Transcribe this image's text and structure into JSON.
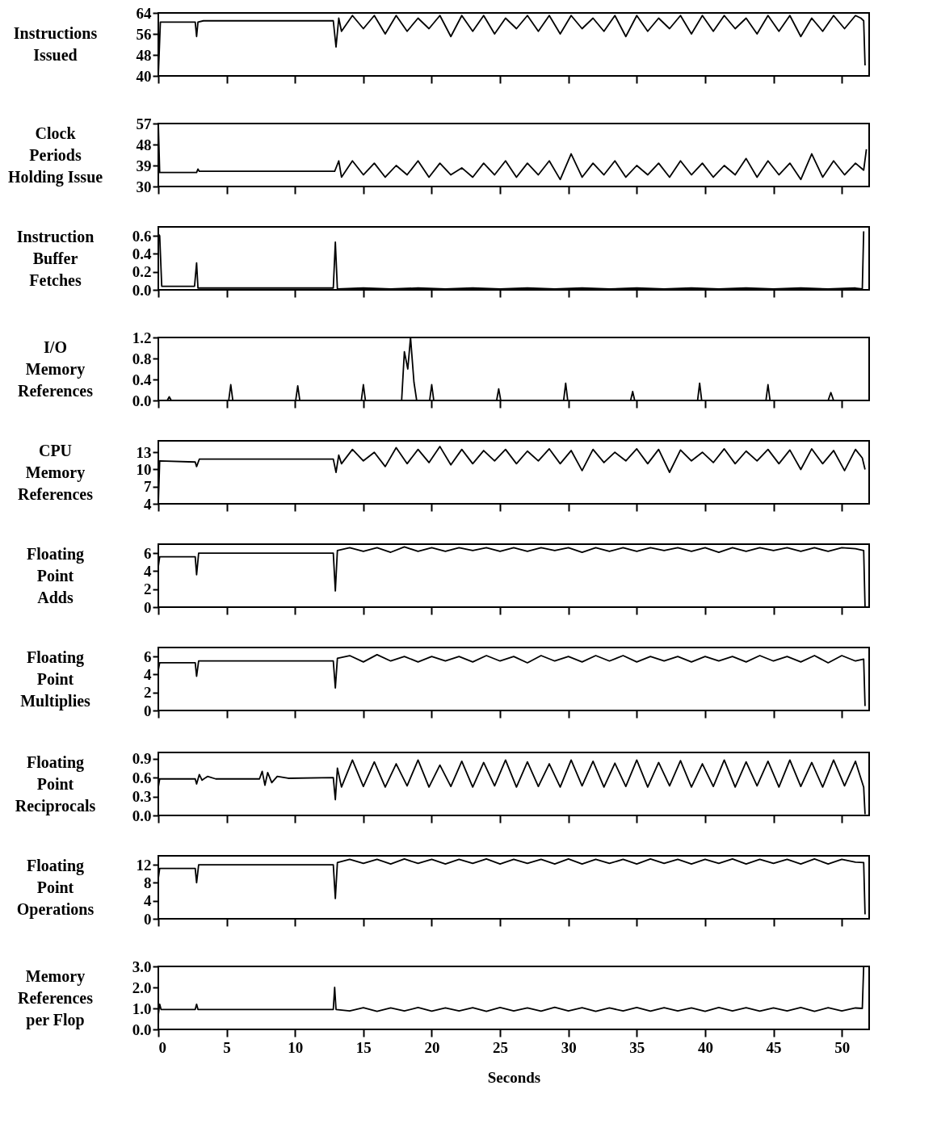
{
  "chart_data": [
    {
      "type": "line",
      "ylabel": "Instructions\nIssued",
      "xlim": [
        0,
        52
      ],
      "xticks": [
        0,
        5,
        10,
        15,
        20,
        25,
        30,
        35,
        40,
        45,
        50
      ],
      "ylim": [
        40,
        64
      ],
      "yticks": [
        40,
        48,
        56,
        64
      ],
      "tick_labels": "y",
      "x": [
        0,
        0.15,
        2.7,
        2.8,
        2.9,
        3.3,
        10,
        12.8,
        13.0,
        13.2,
        13.4,
        14.2,
        15,
        15.8,
        16.6,
        17.4,
        18.2,
        19,
        19.8,
        20.6,
        21.4,
        22.2,
        23,
        23.8,
        24.6,
        25.4,
        26.2,
        27,
        27.8,
        28.6,
        29.4,
        30.2,
        31,
        31.8,
        32.6,
        33.4,
        34.2,
        35,
        35.8,
        36.6,
        37.4,
        38.2,
        39,
        39.8,
        40.6,
        41.4,
        42.2,
        43,
        43.8,
        44.6,
        45.4,
        46.2,
        47,
        47.8,
        48.6,
        49.4,
        50.2,
        51,
        51.4,
        51.6,
        51.7
      ],
      "series": [
        {
          "color": "#000000",
          "values": [
            40,
            60.5,
            60.5,
            55,
            60.5,
            61,
            61,
            61,
            51,
            62,
            57,
            63,
            58,
            63,
            56,
            63,
            57,
            62,
            58,
            63,
            55,
            63,
            57,
            63,
            56,
            62,
            58,
            63,
            57,
            63,
            56,
            63,
            58,
            62,
            57,
            63,
            55,
            63,
            57,
            62,
            58,
            63,
            56,
            63,
            57,
            63,
            58,
            62,
            56,
            63,
            57,
            63,
            55,
            62,
            57,
            63,
            58,
            63,
            62,
            61,
            44
          ]
        }
      ]
    },
    {
      "type": "line",
      "ylabel": "Clock\nPeriods\nHolding Issue",
      "xlim": [
        0,
        52
      ],
      "xticks": [
        0,
        5,
        10,
        15,
        20,
        25,
        30,
        35,
        40,
        45,
        50
      ],
      "ylim": [
        30,
        57
      ],
      "yticks": [
        30,
        39,
        48,
        57
      ],
      "tick_labels": "y",
      "x": [
        0,
        0.1,
        2.8,
        2.9,
        3.0,
        12.9,
        13.2,
        13.4,
        14.2,
        15,
        15.8,
        16.6,
        17.4,
        18.2,
        19,
        19.8,
        20.6,
        21.4,
        22.2,
        23,
        23.8,
        24.6,
        25.4,
        26.2,
        27,
        27.8,
        28.6,
        29.4,
        30.2,
        31,
        31.8,
        32.6,
        33.4,
        34.2,
        35,
        35.8,
        36.6,
        37.4,
        38.2,
        39,
        39.8,
        40.6,
        41.4,
        42.2,
        43,
        43.8,
        44.6,
        45.4,
        46.2,
        47,
        47.8,
        48.6,
        49.4,
        50.2,
        51,
        51.6,
        51.8
      ],
      "series": [
        {
          "color": "#000000",
          "values": [
            57,
            36,
            36,
            37.5,
            36.5,
            36.5,
            41,
            34,
            41,
            35,
            40,
            34,
            39,
            35,
            41,
            34,
            40,
            35,
            38,
            34,
            40,
            35,
            41,
            34,
            40,
            35,
            41,
            33,
            44,
            34,
            40,
            35,
            41,
            34,
            39,
            35,
            40,
            34,
            41,
            35,
            40,
            34,
            39,
            35,
            42,
            34,
            41,
            35,
            40,
            33,
            44,
            34,
            41,
            35,
            40,
            37,
            46
          ]
        }
      ]
    },
    {
      "type": "line",
      "ylabel": "Instruction\nBuffer\nFetches",
      "xlim": [
        0,
        52
      ],
      "xticks": [
        0,
        5,
        10,
        15,
        20,
        25,
        30,
        35,
        40,
        45,
        50
      ],
      "ylim": [
        0,
        0.7
      ],
      "yticks": [
        {
          "value": 0,
          "label": "0.0"
        },
        0.2,
        0.4,
        0.6
      ],
      "tick_labels": "y",
      "x": [
        0,
        0.1,
        0.25,
        2.65,
        2.8,
        2.9,
        12.8,
        12.95,
        13.1,
        15,
        17,
        19,
        21,
        23,
        25,
        27,
        29,
        31,
        33,
        35,
        37,
        39,
        41,
        43,
        45,
        47,
        49,
        51,
        51.5,
        51.6
      ],
      "series": [
        {
          "color": "#000000",
          "values": [
            0.62,
            0.6,
            0.04,
            0.04,
            0.3,
            0.02,
            0.02,
            0.53,
            0.01,
            0.02,
            0.01,
            0.02,
            0.01,
            0.02,
            0.01,
            0.02,
            0.01,
            0.02,
            0.01,
            0.02,
            0.01,
            0.02,
            0.01,
            0.02,
            0.01,
            0.02,
            0.01,
            0.02,
            0.01,
            0.65
          ]
        }
      ]
    },
    {
      "type": "line",
      "ylabel": "I/O\nMemory\nReferences",
      "xlim": [
        0,
        52
      ],
      "xticks": [
        0,
        5,
        10,
        15,
        20,
        25,
        30,
        35,
        40,
        45,
        50
      ],
      "ylim": [
        0,
        1.2
      ],
      "yticks": [
        {
          "value": 0,
          "label": "0.0"
        },
        0.4,
        0.8,
        1.2
      ],
      "tick_labels": "y",
      "x": [
        0,
        0.65,
        0.8,
        0.95,
        5.15,
        5.3,
        5.45,
        10.05,
        10.2,
        10.35,
        14.85,
        15,
        15.15,
        17.8,
        18.0,
        18.25,
        18.45,
        18.7,
        18.9,
        19.85,
        20,
        20.15,
        24.75,
        24.9,
        25.05,
        29.65,
        29.8,
        29.95,
        34.55,
        34.7,
        34.85,
        39.45,
        39.6,
        39.75,
        44.45,
        44.6,
        44.75,
        49.0,
        49.2,
        49.4,
        52
      ],
      "series": [
        {
          "color": "#000000",
          "values": [
            0,
            0,
            0.07,
            0,
            0,
            0.3,
            0,
            0,
            0.28,
            0,
            0,
            0.3,
            0,
            0,
            0.93,
            0.6,
            1.2,
            0.35,
            0,
            0,
            0.3,
            0,
            0,
            0.22,
            0,
            0,
            0.33,
            0,
            0,
            0.17,
            0,
            0,
            0.33,
            0,
            0,
            0.3,
            0,
            0,
            0.15,
            0,
            0
          ]
        }
      ]
    },
    {
      "type": "line",
      "ylabel": "CPU\nMemory\nReferences",
      "xlim": [
        0,
        52
      ],
      "xticks": [
        0,
        5,
        10,
        15,
        20,
        25,
        30,
        35,
        40,
        45,
        50
      ],
      "ylim": [
        4,
        15
      ],
      "yticks": [
        4,
        7,
        10,
        13
      ],
      "tick_labels": "y",
      "x": [
        0,
        0.1,
        2.7,
        2.8,
        3.0,
        12.8,
        13.0,
        13.2,
        13.4,
        14.2,
        15,
        15.8,
        16.6,
        17.4,
        18.2,
        19,
        19.8,
        20.6,
        21.4,
        22.2,
        23,
        23.8,
        24.6,
        25.4,
        26.2,
        27,
        27.8,
        28.6,
        29.4,
        30.2,
        31,
        31.8,
        32.6,
        33.4,
        34.2,
        35,
        35.8,
        36.6,
        37.4,
        38.2,
        39,
        39.8,
        40.6,
        41.4,
        42.2,
        43,
        43.8,
        44.6,
        45.4,
        46.2,
        47,
        47.8,
        48.6,
        49.4,
        50.2,
        51,
        51.5,
        51.7
      ],
      "series": [
        {
          "color": "#000000",
          "values": [
            4,
            11.5,
            11.3,
            10.5,
            11.8,
            11.8,
            9.5,
            12.5,
            11,
            13.5,
            11.5,
            13,
            10.5,
            13.8,
            11,
            13.5,
            11.2,
            14,
            10.8,
            13.5,
            11,
            13.3,
            11.5,
            13.5,
            11,
            13.2,
            11.5,
            13.6,
            11,
            13.3,
            9.8,
            13.5,
            11.2,
            13,
            11.5,
            13.6,
            11,
            13.5,
            9.5,
            13.4,
            11.5,
            13,
            11.2,
            13.6,
            11,
            13.2,
            11.5,
            13.5,
            11,
            13.4,
            10,
            13.6,
            11,
            13.3,
            9.8,
            13.5,
            12,
            10
          ]
        }
      ]
    },
    {
      "type": "line",
      "ylabel": "Floating\nPoint\nAdds",
      "xlim": [
        0,
        52
      ],
      "xticks": [
        0,
        5,
        10,
        15,
        20,
        25,
        30,
        35,
        40,
        45,
        50
      ],
      "ylim": [
        0,
        7
      ],
      "yticks": [
        0,
        2,
        4,
        6
      ],
      "tick_labels": "y",
      "x": [
        0,
        0.1,
        2.7,
        2.8,
        2.95,
        12.8,
        12.95,
        13.1,
        14,
        15,
        16,
        17,
        18,
        19,
        20,
        21,
        22,
        23,
        24,
        25,
        26,
        27,
        28,
        29,
        30,
        31,
        32,
        33,
        34,
        35,
        36,
        37,
        38,
        39,
        40,
        41,
        42,
        43,
        44,
        45,
        46,
        47,
        48,
        49,
        50,
        51,
        51.6,
        51.7
      ],
      "series": [
        {
          "color": "#000000",
          "values": [
            4.5,
            5.6,
            5.6,
            3.6,
            6,
            6,
            1.8,
            6.3,
            6.6,
            6.2,
            6.6,
            6.1,
            6.7,
            6.2,
            6.6,
            6.2,
            6.6,
            6.3,
            6.6,
            6.2,
            6.6,
            6.2,
            6.6,
            6.3,
            6.6,
            6.1,
            6.6,
            6.2,
            6.6,
            6.2,
            6.6,
            6.3,
            6.6,
            6.2,
            6.6,
            6.1,
            6.6,
            6.2,
            6.6,
            6.3,
            6.6,
            6.2,
            6.6,
            6.2,
            6.6,
            6.5,
            6.3,
            0
          ]
        }
      ]
    },
    {
      "type": "line",
      "ylabel": "Floating\nPoint\nMultiplies",
      "xlim": [
        0,
        52
      ],
      "xticks": [
        0,
        5,
        10,
        15,
        20,
        25,
        30,
        35,
        40,
        45,
        50
      ],
      "ylim": [
        0,
        7
      ],
      "yticks": [
        0,
        2,
        4,
        6
      ],
      "tick_labels": "y",
      "x": [
        0,
        0.1,
        2.7,
        2.8,
        2.95,
        12.8,
        12.95,
        13.1,
        14,
        15,
        16,
        17,
        18,
        19,
        20,
        21,
        22,
        23,
        24,
        25,
        26,
        27,
        28,
        29,
        30,
        31,
        32,
        33,
        34,
        35,
        36,
        37,
        38,
        39,
        40,
        41,
        42,
        43,
        44,
        45,
        46,
        47,
        48,
        49,
        50,
        51,
        51.6,
        51.7
      ],
      "series": [
        {
          "color": "#000000",
          "values": [
            4.5,
            5.3,
            5.3,
            3.8,
            5.5,
            5.5,
            2.5,
            5.8,
            6.1,
            5.4,
            6.2,
            5.5,
            6,
            5.4,
            6,
            5.5,
            6,
            5.4,
            6.1,
            5.5,
            6,
            5.3,
            6.1,
            5.5,
            6,
            5.4,
            6.1,
            5.5,
            6.1,
            5.4,
            6,
            5.5,
            6,
            5.4,
            6,
            5.5,
            6,
            5.4,
            6.1,
            5.5,
            6,
            5.4,
            6.1,
            5.3,
            6.1,
            5.5,
            5.7,
            0.5
          ]
        }
      ]
    },
    {
      "type": "line",
      "ylabel": "Floating\nPoint\nReciprocals",
      "xlim": [
        0,
        52
      ],
      "xticks": [
        0,
        5,
        10,
        15,
        20,
        25,
        30,
        35,
        40,
        45,
        50
      ],
      "ylim": [
        0,
        1.0
      ],
      "yticks": [
        {
          "value": 0,
          "label": "0.0"
        },
        0.3,
        0.6,
        0.9
      ],
      "tick_labels": "y",
      "x": [
        0,
        0.1,
        2.7,
        2.8,
        3.0,
        3.2,
        3.6,
        4.2,
        7.4,
        7.6,
        7.8,
        8.0,
        8.3,
        8.7,
        9.5,
        12.8,
        12.95,
        13.1,
        13.4,
        14.2,
        15,
        15.8,
        16.6,
        17.4,
        18.2,
        19,
        19.8,
        20.6,
        21.4,
        22.2,
        23,
        23.8,
        24.6,
        25.4,
        26.2,
        27,
        27.8,
        28.6,
        29.4,
        30.2,
        31,
        31.8,
        32.6,
        33.4,
        34.2,
        35,
        35.8,
        36.6,
        37.4,
        38.2,
        39,
        39.8,
        40.6,
        41.4,
        42.2,
        43,
        43.8,
        44.6,
        45.4,
        46.2,
        47,
        47.8,
        48.6,
        49.4,
        50.2,
        51,
        51.6,
        51.7
      ],
      "series": [
        {
          "color": "#000000",
          "values": [
            0.45,
            0.58,
            0.58,
            0.5,
            0.65,
            0.56,
            0.62,
            0.58,
            0.58,
            0.7,
            0.48,
            0.68,
            0.52,
            0.62,
            0.59,
            0.6,
            0.25,
            0.75,
            0.45,
            0.88,
            0.46,
            0.85,
            0.45,
            0.82,
            0.47,
            0.88,
            0.45,
            0.8,
            0.46,
            0.86,
            0.45,
            0.84,
            0.47,
            0.88,
            0.45,
            0.85,
            0.46,
            0.82,
            0.45,
            0.88,
            0.47,
            0.86,
            0.45,
            0.83,
            0.46,
            0.88,
            0.45,
            0.84,
            0.47,
            0.87,
            0.45,
            0.82,
            0.46,
            0.88,
            0.45,
            0.85,
            0.47,
            0.86,
            0.45,
            0.88,
            0.46,
            0.84,
            0.45,
            0.88,
            0.47,
            0.86,
            0.45,
            0.02
          ]
        }
      ]
    },
    {
      "type": "line",
      "ylabel": "Floating\nPoint\nOperations",
      "xlim": [
        0,
        52
      ],
      "xticks": [
        0,
        5,
        10,
        15,
        20,
        25,
        30,
        35,
        40,
        45,
        50
      ],
      "ylim": [
        0,
        14
      ],
      "yticks": [
        0,
        4,
        8,
        12
      ],
      "tick_labels": "y",
      "x": [
        0,
        0.1,
        2.7,
        2.8,
        2.95,
        12.8,
        12.95,
        13.1,
        14,
        15,
        16,
        17,
        18,
        19,
        20,
        21,
        22,
        23,
        24,
        25,
        26,
        27,
        28,
        29,
        30,
        31,
        32,
        33,
        34,
        35,
        36,
        37,
        38,
        39,
        40,
        41,
        42,
        43,
        44,
        45,
        46,
        47,
        48,
        49,
        50,
        51,
        51.6,
        51.7
      ],
      "series": [
        {
          "color": "#000000",
          "values": [
            9,
            11.2,
            11.2,
            8,
            12,
            12,
            4.5,
            12.5,
            13.2,
            12.3,
            13.2,
            12.2,
            13.3,
            12.3,
            13.2,
            12.2,
            13.2,
            12.3,
            13.3,
            12.2,
            13.2,
            12.3,
            13.2,
            12.2,
            13.3,
            12.2,
            13.2,
            12.3,
            13.2,
            12.2,
            13.3,
            12.3,
            13.2,
            12.2,
            13.2,
            12.3,
            13.3,
            12.2,
            13.2,
            12.3,
            13.2,
            12.2,
            13.3,
            12.2,
            13.2,
            12.6,
            12.5,
            1
          ]
        }
      ]
    },
    {
      "type": "line",
      "ylabel": "Memory\nReferences\nper Flop",
      "xlabel": "Seconds",
      "xlim": [
        0,
        52
      ],
      "xticks": [
        0,
        5,
        10,
        15,
        20,
        25,
        30,
        35,
        40,
        45,
        50
      ],
      "ylim": [
        0,
        3
      ],
      "yticks": [
        {
          "value": 0,
          "label": "0.0"
        },
        {
          "value": 1,
          "label": "1.0"
        },
        {
          "value": 2,
          "label": "2.0"
        },
        {
          "value": 3,
          "label": "3.0"
        }
      ],
      "x": [
        0,
        0.1,
        0.2,
        2.7,
        2.8,
        2.9,
        12.8,
        12.9,
        13.0,
        14,
        15,
        16,
        17,
        18,
        19,
        20,
        21,
        22,
        23,
        24,
        25,
        26,
        27,
        28,
        29,
        30,
        31,
        32,
        33,
        34,
        35,
        36,
        37,
        38,
        39,
        40,
        41,
        42,
        43,
        44,
        45,
        46,
        47,
        48,
        49,
        50,
        51,
        51.5,
        51.6
      ],
      "series": [
        {
          "color": "#000000",
          "values": [
            0.7,
            1.2,
            0.95,
            0.95,
            1.2,
            0.95,
            0.95,
            2.0,
            0.95,
            0.88,
            1.03,
            0.86,
            1.02,
            0.88,
            1.04,
            0.87,
            1.02,
            0.88,
            1.03,
            0.86,
            1.04,
            0.88,
            1.02,
            0.87,
            1.05,
            0.88,
            1.03,
            0.86,
            1.02,
            0.88,
            1.04,
            0.87,
            1.03,
            0.88,
            1.02,
            0.86,
            1.04,
            0.88,
            1.03,
            0.87,
            1.02,
            0.88,
            1.04,
            0.86,
            1.03,
            0.88,
            1.02,
            1.0,
            3.0
          ]
        }
      ]
    }
  ]
}
